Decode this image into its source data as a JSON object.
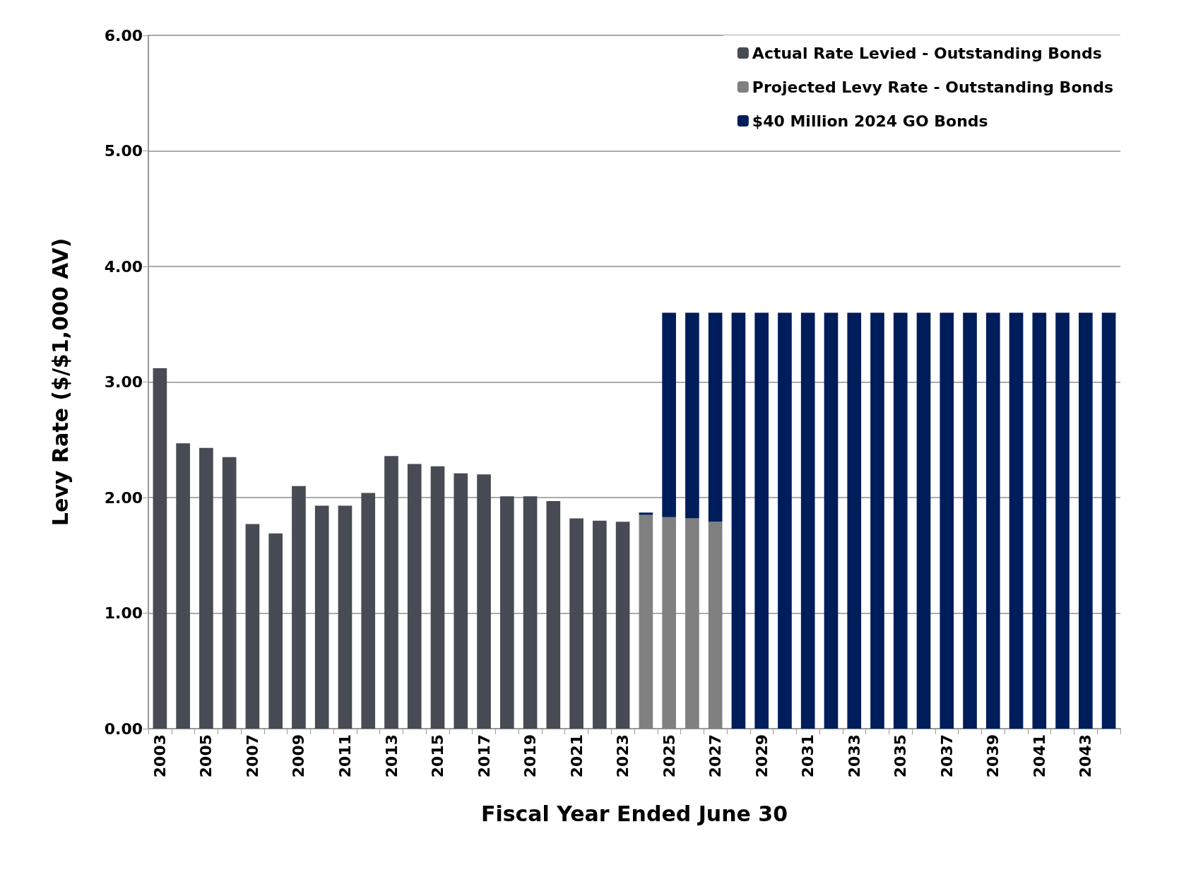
{
  "chart_data": {
    "type": "bar",
    "stacked": true,
    "xlabel": "Fiscal Year Ended June 30",
    "ylabel": "Levy Rate ($/$1,000 AV)",
    "categories": [
      "2003",
      null,
      "2005",
      null,
      "2007",
      null,
      "2009",
      null,
      "2011",
      null,
      "2013",
      null,
      "2015",
      null,
      "2017",
      null,
      "2019",
      null,
      "2021",
      null,
      "2023",
      null,
      "2025",
      null,
      "2027",
      null,
      "2029",
      null,
      "2031",
      null,
      "2033",
      null,
      "2035",
      null,
      "2037",
      null,
      "2039",
      null,
      "2041",
      null,
      "2043",
      null
    ],
    "series": [
      {
        "name": "Actual Rate Levied - Outstanding Bonds",
        "color": "#474b53",
        "values": [
          3.12,
          2.47,
          2.43,
          2.35,
          1.77,
          1.69,
          2.1,
          1.93,
          1.93,
          2.04,
          2.36,
          2.29,
          2.27,
          2.21,
          2.2,
          2.01,
          2.01,
          1.97,
          1.82,
          1.8,
          1.79,
          null,
          null,
          null,
          null,
          null,
          null,
          null,
          null,
          null,
          null,
          null,
          null,
          null,
          null,
          null,
          null,
          null,
          null,
          null,
          null,
          null
        ]
      },
      {
        "name": "Projected Levy Rate - Outstanding Bonds",
        "color": "#808080",
        "values": [
          null,
          null,
          null,
          null,
          null,
          null,
          null,
          null,
          null,
          null,
          null,
          null,
          null,
          null,
          null,
          null,
          null,
          null,
          null,
          null,
          null,
          1.85,
          1.83,
          1.82,
          1.79,
          null,
          null,
          null,
          null,
          null,
          null,
          null,
          null,
          null,
          null,
          null,
          null,
          null,
          null,
          null,
          null,
          null
        ]
      },
      {
        "name": "$40 Million 2024 GO Bonds",
        "color": "#001d5b",
        "values": [
          null,
          null,
          null,
          null,
          null,
          null,
          null,
          null,
          null,
          null,
          null,
          null,
          null,
          null,
          null,
          null,
          null,
          null,
          null,
          null,
          null,
          0.02,
          1.77,
          1.78,
          1.81,
          3.6,
          3.6,
          3.6,
          3.6,
          3.6,
          3.6,
          3.6,
          3.6,
          3.6,
          3.6,
          3.6,
          3.6,
          3.6,
          3.6,
          3.6,
          3.6,
          3.6
        ]
      }
    ],
    "ylim": [
      0,
      6
    ],
    "yticks": [
      {
        "value": 0,
        "label": "0.00"
      },
      {
        "value": 1,
        "label": "1.00"
      },
      {
        "value": 2,
        "label": "2.00"
      },
      {
        "value": 3,
        "label": "3.00"
      },
      {
        "value": 4,
        "label": "4.00"
      },
      {
        "value": 5,
        "label": "5.00"
      },
      {
        "value": 6,
        "label": "6.00"
      }
    ],
    "grid": "y",
    "legend": "top right"
  }
}
